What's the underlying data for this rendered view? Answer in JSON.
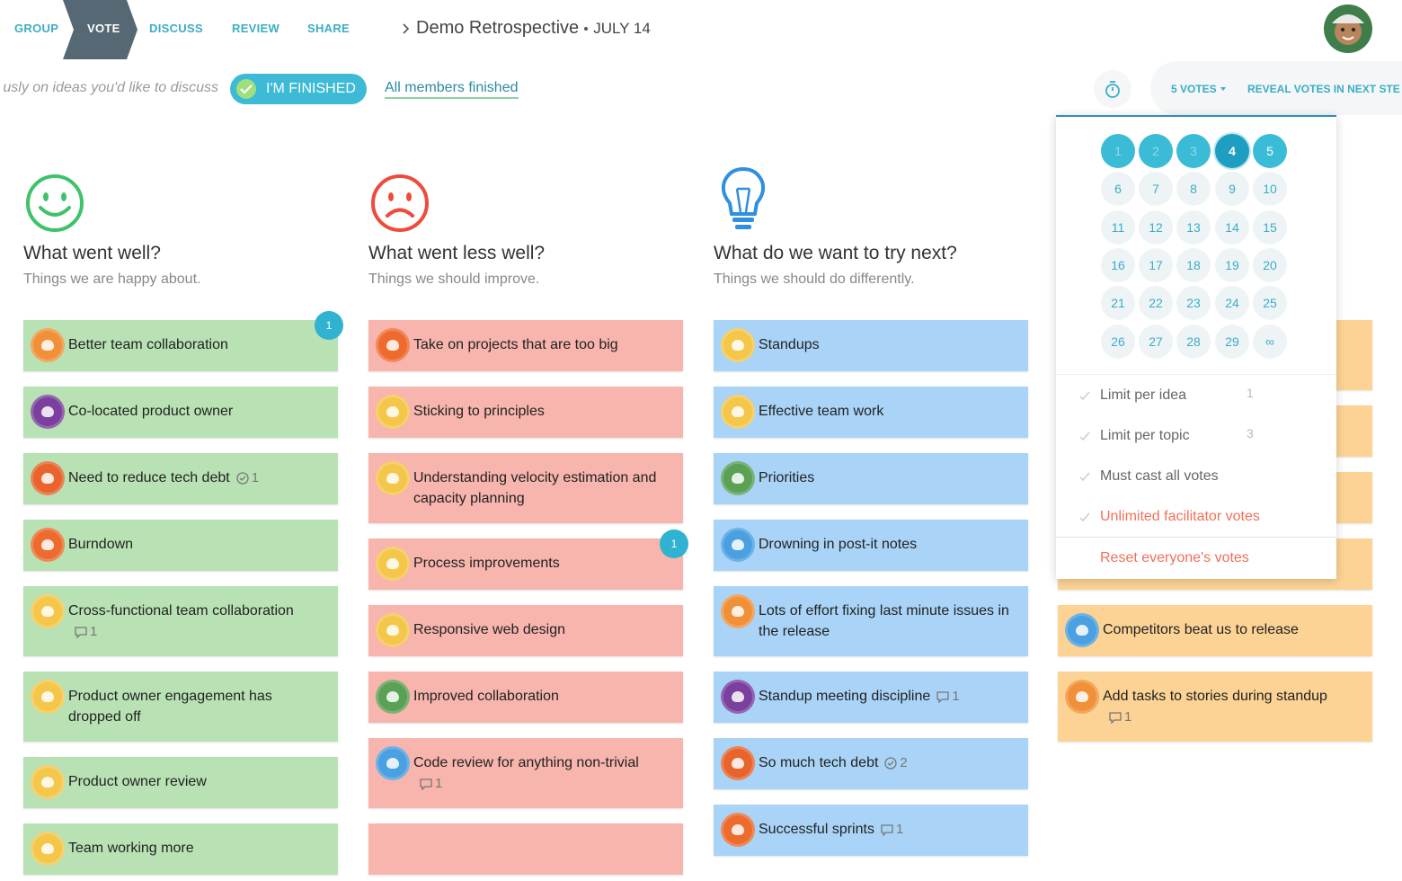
{
  "nav": {
    "steps": [
      "GROUP",
      "VOTE",
      "DISCUSS",
      "REVIEW",
      "SHARE"
    ]
  },
  "breadcrumb": {
    "title": "Demo Retrospective",
    "date": "JULY 14"
  },
  "toolbar": {
    "instruction": "usly on ideas you'd like to discuss",
    "finished_button": "I'M FINISHED",
    "members_status": "All members finished",
    "votes_button": "5 VOTES",
    "reveal_button": "REVEAL VOTES IN NEXT STE"
  },
  "vote_menu": {
    "options": [
      1,
      2,
      3,
      4,
      5,
      6,
      7,
      8,
      9,
      10,
      11,
      12,
      13,
      14,
      15,
      16,
      17,
      18,
      19,
      20,
      21,
      22,
      23,
      24,
      25,
      26,
      27,
      28,
      29,
      "∞"
    ],
    "settings": [
      {
        "label": "Limit per idea",
        "value": 1
      },
      {
        "label": "Limit per topic",
        "value": 3
      },
      {
        "label": "Must cast all votes"
      },
      {
        "label": "Unlimited facilitator votes"
      }
    ],
    "reset": "Reset everyone's votes"
  },
  "columns": [
    {
      "title": "What went well?",
      "subtitle": "Things we are happy about.",
      "cards": [
        {
          "text": "Better team collaboration",
          "badge": 1
        },
        {
          "text": "Co-located product owner"
        },
        {
          "text": "Need to reduce tech debt",
          "votes": 1
        },
        {
          "text": "Burndown"
        },
        {
          "text": "Cross-functional team collaboration",
          "comments": 1
        },
        {
          "text": "Product owner engagement has dropped off"
        },
        {
          "text": "Product owner review"
        },
        {
          "text": "Team working more"
        }
      ]
    },
    {
      "title": "What went less well?",
      "subtitle": "Things we should improve.",
      "cards": [
        {
          "text": "Take on projects that are too big"
        },
        {
          "text": "Sticking to principles"
        },
        {
          "text": "Understanding velocity estimation and capacity planning"
        },
        {
          "text": "Process improvements",
          "badge": 1
        },
        {
          "text": "Responsive web design"
        },
        {
          "text": "Improved collaboration"
        },
        {
          "text": "Code review for anything non-trivial",
          "comments": 1
        }
      ]
    },
    {
      "title": "What do we want to try next?",
      "subtitle": "Things we should do differently.",
      "cards": [
        {
          "text": "Standups"
        },
        {
          "text": "Effective team work"
        },
        {
          "text": "Priorities"
        },
        {
          "text": "Drowning in post-it notes"
        },
        {
          "text": "Lots of effort fixing last minute issues in the release"
        },
        {
          "text": "Standup meeting discipline",
          "comments": 1
        },
        {
          "text": "So much tech debt",
          "votes": 2
        },
        {
          "text": "Successful sprints",
          "comments": 1
        }
      ]
    },
    {
      "cards": [
        {
          "text": "Competitors beat us to release"
        },
        {
          "text": "Add tasks to stories during standup",
          "comments": 1
        }
      ]
    }
  ]
}
